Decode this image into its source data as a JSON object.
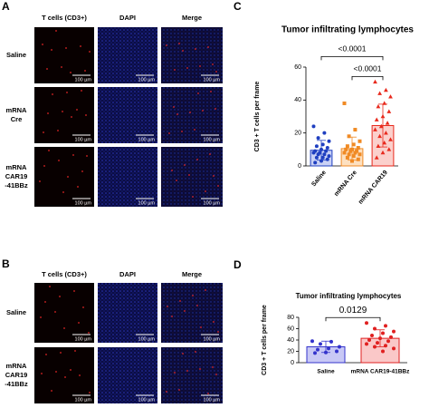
{
  "figure": {
    "panel_a": {
      "letter": "A",
      "columns": [
        "T cells (CD3+)",
        "DAPI",
        "Merge"
      ],
      "rows": [
        [
          "Saline"
        ],
        [
          "mRNA",
          "Cre"
        ],
        [
          "mRNA",
          "CAR19",
          "-41BBz"
        ]
      ]
    },
    "panel_b": {
      "letter": "B",
      "columns": [
        "T cells (CD3+)",
        "DAPI",
        "Merge"
      ],
      "rows": [
        [
          "Saline"
        ],
        [
          "mRNA",
          "CAR19",
          "-41BBz"
        ]
      ]
    },
    "scale_bar": "100 µm",
    "letter_c": "C",
    "letter_d": "D"
  },
  "chart_data": [
    {
      "type": "bar",
      "title": "Tumor infiltrating lymphocytes",
      "ylabel": "CD3 + T cells per frame",
      "categories": [
        "Saline",
        "mRNA Cre",
        "mRNA CAR19"
      ],
      "rotate_labels": true,
      "values": [
        9.5,
        10.5,
        24.5
      ],
      "errors": [
        6,
        7,
        13
      ],
      "points": [
        [
          24,
          20,
          17,
          15,
          13,
          12,
          11,
          10,
          9,
          9,
          8,
          8,
          7,
          7,
          6,
          5,
          5,
          4,
          3,
          2
        ],
        [
          38,
          22,
          18,
          15,
          13,
          12,
          11,
          10,
          10,
          9,
          9,
          8,
          8,
          7,
          7,
          6,
          5,
          4,
          3
        ],
        [
          51,
          46,
          44,
          42,
          38,
          36,
          33,
          30,
          28,
          26,
          24,
          22,
          20,
          18,
          16,
          14,
          12,
          10,
          8,
          5
        ]
      ],
      "colors": [
        "#1f3fc0",
        "#f08a24",
        "#e8291c"
      ],
      "fills": [
        "#c9d1f5",
        "#fde0c0",
        "#fbd0cc"
      ],
      "markers": [
        "circle",
        "square",
        "triangle"
      ],
      "ylim": [
        0,
        60
      ],
      "yticks": [
        0,
        20,
        40,
        60
      ],
      "annotations": [
        {
          "label": "<0.0001",
          "groups": [
            1,
            2
          ]
        },
        {
          "label": "<0.0001",
          "groups": [
            0,
            2
          ]
        }
      ]
    },
    {
      "type": "bar",
      "title": "Tumor infiltrating lymphocytes",
      "ylabel": "CD3 + T cells per frame",
      "categories": [
        "Saline",
        "mRNA CAR19-41BBz"
      ],
      "rotate_labels": false,
      "values": [
        28,
        43
      ],
      "errors": [
        10,
        15
      ],
      "points": [
        [
          38,
          37,
          33,
          28,
          25,
          23,
          20,
          18,
          17
        ],
        [
          70,
          65,
          60,
          55,
          52,
          48,
          45,
          43,
          40,
          38,
          35,
          33,
          30,
          28,
          25,
          20
        ]
      ],
      "colors": [
        "#3333cc",
        "#e02020"
      ],
      "fills": [
        "#c8c8f5",
        "#fac8c8"
      ],
      "markers": [
        "circle",
        "circle"
      ],
      "ylim": [
        0,
        80
      ],
      "yticks": [
        0,
        20,
        40,
        60,
        80
      ],
      "annotations": [
        {
          "label": "0.0129",
          "groups": [
            0,
            1
          ]
        }
      ]
    }
  ]
}
